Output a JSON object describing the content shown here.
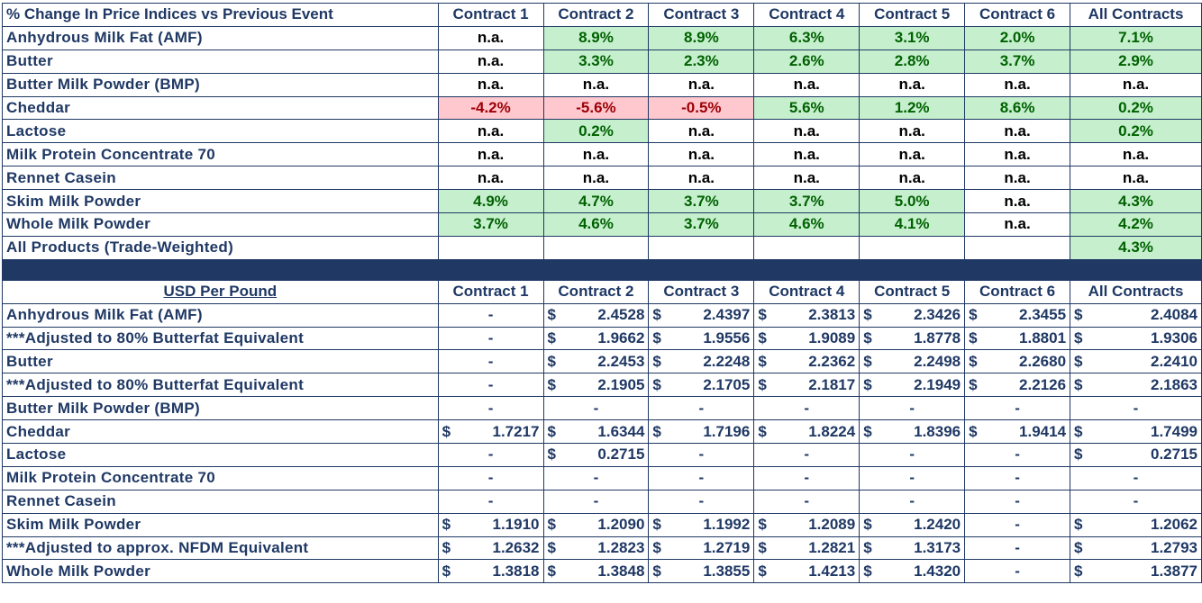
{
  "pct_section": {
    "title": "% Change In Price Indices vs Previous Event",
    "columns": [
      "Contract 1",
      "Contract 2",
      "Contract 3",
      "Contract 4",
      "Contract 5",
      "Contract 6",
      "All Contracts"
    ],
    "rows": [
      {
        "name": "Anhydrous Milk Fat (AMF)",
        "values": [
          "n.a.",
          "8.9%",
          "8.9%",
          "6.3%",
          "3.1%",
          "2.0%",
          "7.1%"
        ]
      },
      {
        "name": "Butter",
        "values": [
          "n.a.",
          "3.3%",
          "2.3%",
          "2.6%",
          "2.8%",
          "3.7%",
          "2.9%"
        ]
      },
      {
        "name": "Butter Milk Powder (BMP)",
        "values": [
          "n.a.",
          "n.a.",
          "n.a.",
          "n.a.",
          "n.a.",
          "n.a.",
          "n.a."
        ]
      },
      {
        "name": "Cheddar",
        "values": [
          "-4.2%",
          "-5.6%",
          "-0.5%",
          "5.6%",
          "1.2%",
          "8.6%",
          "0.2%"
        ]
      },
      {
        "name": "Lactose",
        "values": [
          "n.a.",
          "0.2%",
          "n.a.",
          "n.a.",
          "n.a.",
          "n.a.",
          "0.2%"
        ]
      },
      {
        "name": "Milk Protein Concentrate 70",
        "values": [
          "n.a.",
          "n.a.",
          "n.a.",
          "n.a.",
          "n.a.",
          "n.a.",
          "n.a."
        ]
      },
      {
        "name": "Rennet Casein",
        "values": [
          "n.a.",
          "n.a.",
          "n.a.",
          "n.a.",
          "n.a.",
          "n.a.",
          "n.a."
        ]
      },
      {
        "name": "Skim Milk Powder",
        "values": [
          "4.9%",
          "4.7%",
          "3.7%",
          "3.7%",
          "5.0%",
          "n.a.",
          "4.3%"
        ]
      },
      {
        "name": "Whole Milk Powder",
        "values": [
          "3.7%",
          "4.6%",
          "3.7%",
          "4.6%",
          "4.1%",
          "n.a.",
          "4.2%"
        ]
      },
      {
        "name": "All Products (Trade-Weighted)",
        "values": [
          "",
          "",
          "",
          "",
          "",
          "",
          "4.3%"
        ]
      }
    ]
  },
  "usd_section": {
    "title": "USD Per Pound",
    "columns": [
      "Contract 1",
      "Contract 2",
      "Contract 3",
      "Contract 4",
      "Contract 5",
      "Contract 6",
      "All Contracts"
    ],
    "currency": "$",
    "rows": [
      {
        "name": "Anhydrous Milk Fat (AMF)",
        "values": [
          "-",
          "2.4528",
          "2.4397",
          "2.3813",
          "2.3426",
          "2.3455",
          "2.4084"
        ]
      },
      {
        "name": "***Adjusted to 80% Butterfat Equivalent",
        "values": [
          "-",
          "1.9662",
          "1.9556",
          "1.9089",
          "1.8778",
          "1.8801",
          "1.9306"
        ]
      },
      {
        "name": "Butter",
        "values": [
          "-",
          "2.2453",
          "2.2248",
          "2.2362",
          "2.2498",
          "2.2680",
          "2.2410"
        ]
      },
      {
        "name": "***Adjusted to 80% Butterfat Equivalent",
        "values": [
          "-",
          "2.1905",
          "2.1705",
          "2.1817",
          "2.1949",
          "2.2126",
          "2.1863"
        ]
      },
      {
        "name": "Butter Milk Powder (BMP)",
        "values": [
          "-",
          "-",
          "-",
          "-",
          "-",
          "-",
          "-"
        ]
      },
      {
        "name": "Cheddar",
        "values": [
          "1.7217",
          "1.6344",
          "1.7196",
          "1.8224",
          "1.8396",
          "1.9414",
          "1.7499"
        ]
      },
      {
        "name": "Lactose",
        "values": [
          "-",
          "0.2715",
          "-",
          "-",
          "-",
          "-",
          "0.2715"
        ]
      },
      {
        "name": "Milk Protein Concentrate 70",
        "values": [
          "-",
          "-",
          "-",
          "-",
          "-",
          "-",
          "-"
        ]
      },
      {
        "name": "Rennet Casein",
        "values": [
          "-",
          "-",
          "-",
          "-",
          "-",
          "-",
          "-"
        ]
      },
      {
        "name": "Skim Milk Powder",
        "values": [
          "1.1910",
          "1.2090",
          "1.1992",
          "1.2089",
          "1.2420",
          "-",
          "1.2062"
        ]
      },
      {
        "name": "***Adjusted to approx. NFDM Equivalent",
        "values": [
          "1.2632",
          "1.2823",
          "1.2719",
          "1.2821",
          "1.3173",
          "-",
          "1.2793"
        ]
      },
      {
        "name": "Whole Milk Powder",
        "values": [
          "1.3818",
          "1.3848",
          "1.3855",
          "1.4213",
          "1.4320",
          "-",
          "1.3877"
        ]
      }
    ]
  },
  "colors": {
    "header_navy": "#1f3864",
    "positive_fill": "#c6efce",
    "positive_text": "#006100",
    "negative_fill": "#ffc7ce",
    "negative_text": "#9c0006"
  }
}
